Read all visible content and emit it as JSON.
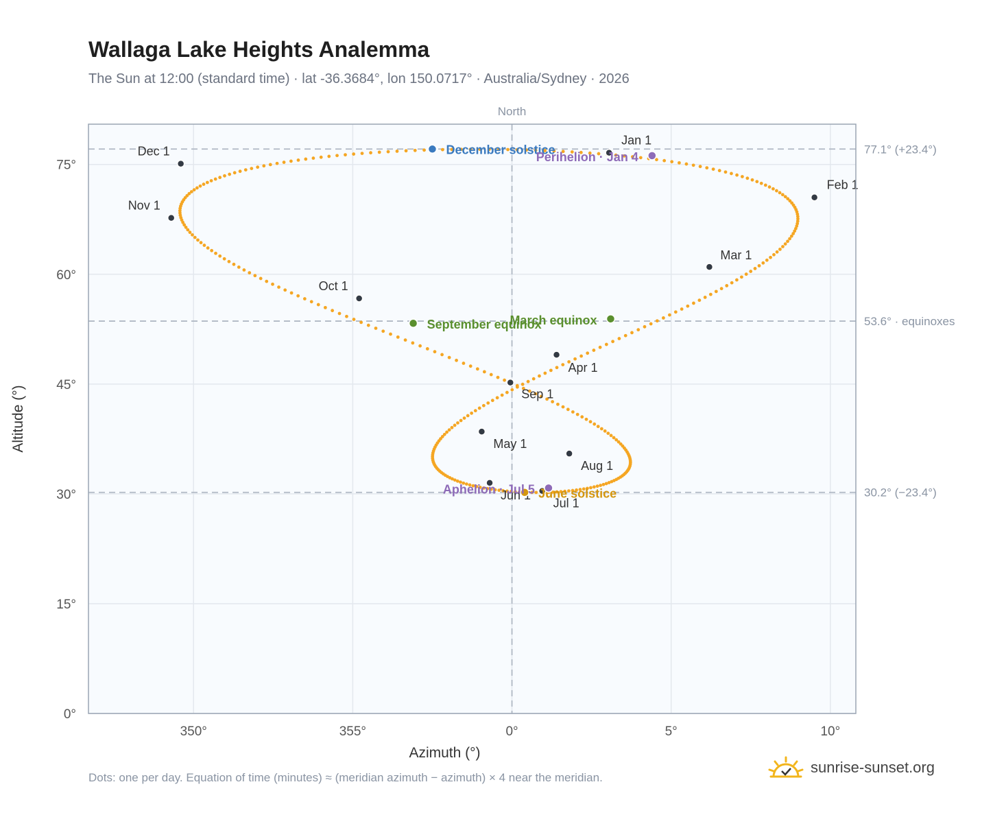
{
  "header": {
    "title": "Wallaga Lake Heights Analemma",
    "subtitle": "The Sun at 12:00 (standard time) · lat -36.3684°, lon 150.0717° · Australia/Sydney · 2026"
  },
  "footer": {
    "note": "Dots: one per day. Equation of time (minutes) ≈ (meridian azimuth − azimuth) × 4 near the meridian.",
    "brand": "sunrise-sunset.org",
    "brand_icon": "sun-logo-icon"
  },
  "colors": {
    "path": "#f5a623",
    "month_marker": "#333a44",
    "solstice_dec": "#3a7abf",
    "solstice_jun": "#d4960f",
    "equinox": "#5a8f2e",
    "apsis": "#8e6bb8",
    "ref_line": "#b0b8c4",
    "plot_bg": "#f8fbfe",
    "frame": "#9aa5b4",
    "grid": "#e3e8ee"
  },
  "chart_data": {
    "type": "scatter",
    "xlabel": "Azimuth (°)",
    "ylabel": "Altitude (°)",
    "xlim": [
      346.7,
      10.8
    ],
    "ylim": [
      0,
      80.5
    ],
    "x_ticks": [
      {
        "value": 350,
        "label": "350°"
      },
      {
        "value": 355,
        "label": "355°"
      },
      {
        "value": 0,
        "label": "0°"
      },
      {
        "value": 5,
        "label": "5°"
      },
      {
        "value": 10,
        "label": "10°"
      }
    ],
    "y_ticks": [
      {
        "value": 0,
        "label": "0°"
      },
      {
        "value": 15,
        "label": "15°"
      },
      {
        "value": 30,
        "label": "30°"
      },
      {
        "value": 45,
        "label": "45°"
      },
      {
        "value": 60,
        "label": "60°"
      },
      {
        "value": 75,
        "label": "75°"
      }
    ],
    "grid": true,
    "meridian": {
      "azimuth": 0,
      "label": "North"
    },
    "reference_lines": [
      {
        "altitude": 77.1,
        "label": "77.1° (+23.4°)"
      },
      {
        "altitude": 53.6,
        "label": "53.6° · equinoxes"
      },
      {
        "altitude": 30.2,
        "label": "30.2° (−23.4°)"
      }
    ],
    "daily_points_per_year": 365,
    "month_markers": [
      {
        "label": "Jan 1",
        "az": 3.05,
        "alt": 76.6
      },
      {
        "label": "Feb 1",
        "az": 9.5,
        "alt": 70.5
      },
      {
        "label": "Mar 1",
        "az": 6.2,
        "alt": 61.0
      },
      {
        "label": "Apr 1",
        "az": 1.4,
        "alt": 49.0
      },
      {
        "label": "May 1",
        "az": -0.95,
        "alt": 38.5
      },
      {
        "label": "Jun 1",
        "az": -0.7,
        "alt": 31.5
      },
      {
        "label": "Jul 1",
        "az": 0.95,
        "alt": 30.4
      },
      {
        "label": "Aug 1",
        "az": 1.8,
        "alt": 35.5
      },
      {
        "label": "Sep 1",
        "az": -0.05,
        "alt": 45.2
      },
      {
        "label": "Oct 1",
        "az": -4.8,
        "alt": 56.7
      },
      {
        "label": "Nov 1",
        "az": -10.7,
        "alt": 67.7
      },
      {
        "label": "Dec 1",
        "az": -10.4,
        "alt": 75.1
      }
    ],
    "events": [
      {
        "label": "December solstice",
        "az": -2.5,
        "alt": 77.1,
        "kind": "solstice_dec"
      },
      {
        "label": "Perihelion · Jan 4",
        "az": 4.4,
        "alt": 76.2,
        "kind": "apsis"
      },
      {
        "label": "March equinox",
        "az": 3.1,
        "alt": 53.9,
        "kind": "equinox"
      },
      {
        "label": "September equinox",
        "az": -3.1,
        "alt": 53.3,
        "kind": "equinox"
      },
      {
        "label": "June solstice",
        "az": 0.4,
        "alt": 30.2,
        "kind": "solstice_jun"
      },
      {
        "label": "Aphelion · Jul 5",
        "az": 1.15,
        "alt": 30.8,
        "kind": "apsis"
      }
    ]
  }
}
